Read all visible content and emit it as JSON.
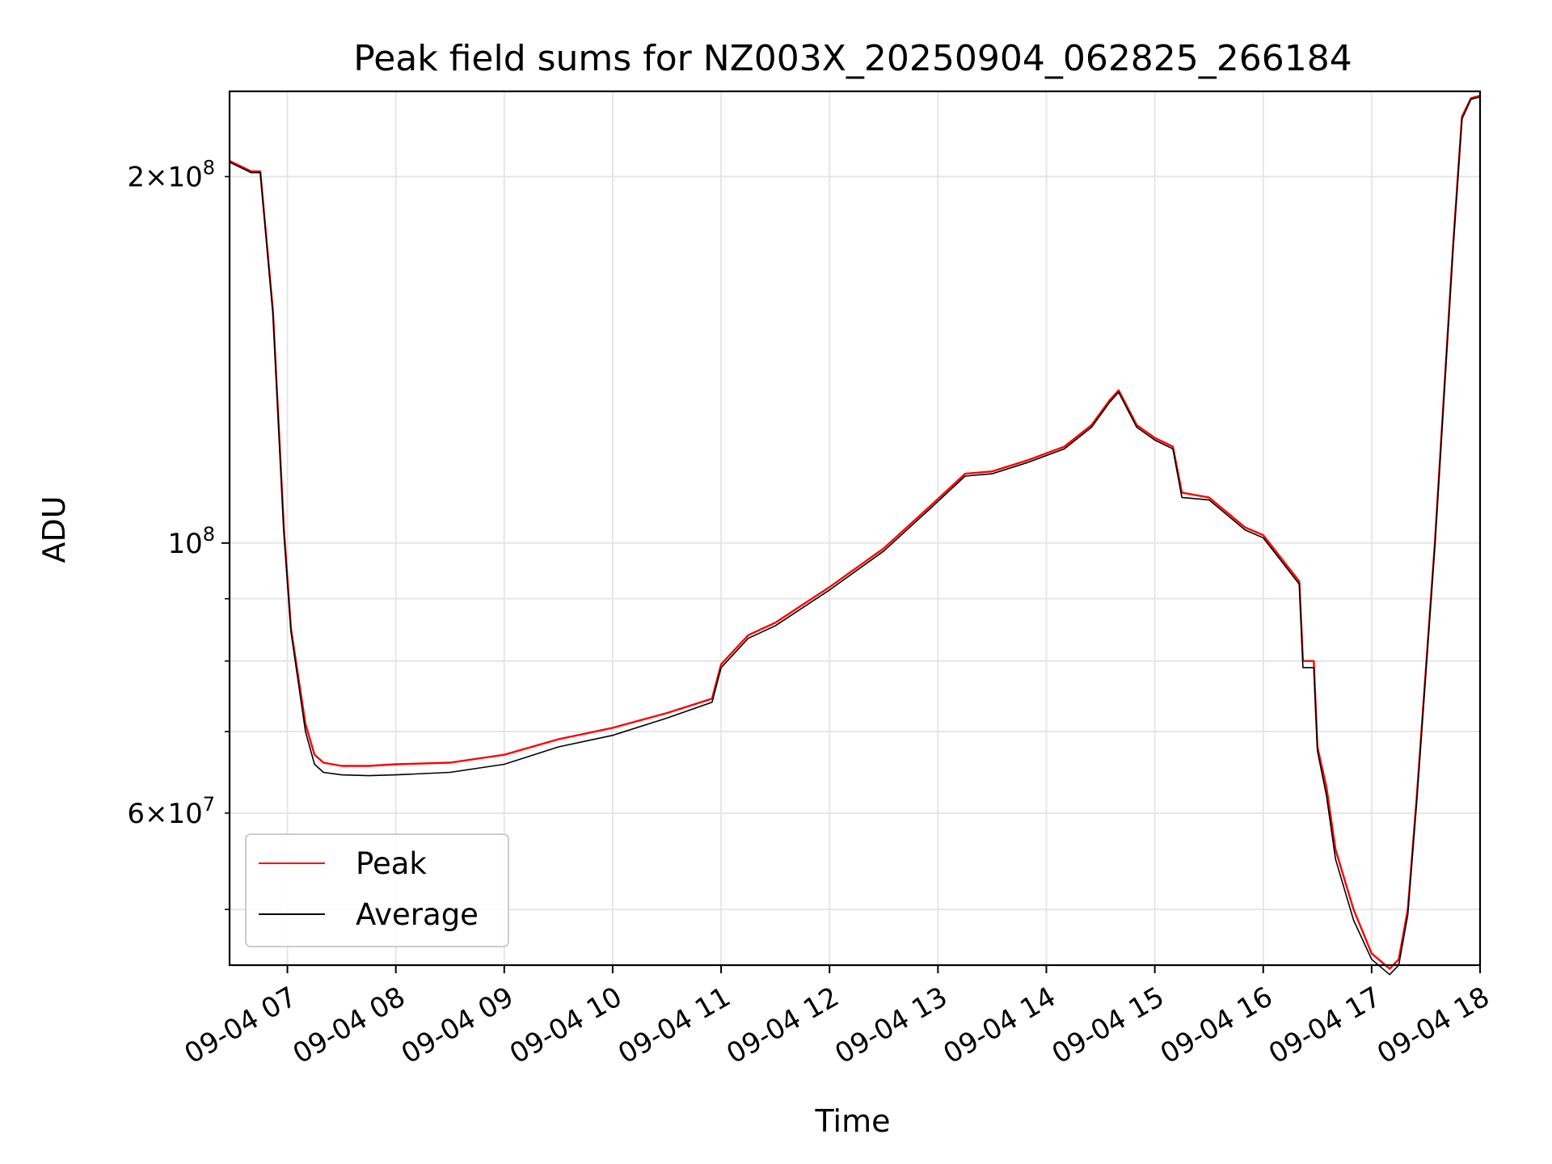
{
  "chart_data": {
    "type": "line",
    "title": "Peak field sums for NZ003X_20250904_062825_266184",
    "xlabel": "Time",
    "ylabel": "ADU",
    "x_axis_type": "datetime",
    "xlim": [
      "2025-09-04T06:28",
      "2025-09-04T18:00"
    ],
    "ylim": [
      45000000,
      235000000
    ],
    "y_scale": "log",
    "grid": true,
    "legend_position": "lower-left",
    "x_ticks": [
      "09-04 07",
      "09-04 08",
      "09-04 09",
      "09-04 10",
      "09-04 11",
      "09-04 12",
      "09-04 13",
      "09-04 14",
      "09-04 15",
      "09-04 16",
      "09-04 17",
      "09-04 18"
    ],
    "y_major_ticks": [
      {
        "value": 100000000,
        "mantissa": "",
        "exponent": "8"
      }
    ],
    "y_labeled_minor_ticks": [
      {
        "value": 60000000,
        "mantissa": "6",
        "exponent": "7"
      },
      {
        "value": 200000000,
        "mantissa": "2",
        "exponent": "8"
      }
    ],
    "y_minor_ticks": [
      50000000,
      60000000,
      70000000,
      80000000,
      90000000,
      200000000
    ],
    "series": [
      {
        "name": "Peak",
        "color": "#ff0000",
        "x": [
          "2025-09-04T06:28",
          "2025-09-04T06:40",
          "2025-09-04T06:45",
          "2025-09-04T06:52",
          "2025-09-04T06:58",
          "2025-09-04T07:02",
          "2025-09-04T07:10",
          "2025-09-04T07:15",
          "2025-09-04T07:20",
          "2025-09-04T07:30",
          "2025-09-04T07:45",
          "2025-09-04T08:00",
          "2025-09-04T08:30",
          "2025-09-04T09:00",
          "2025-09-04T09:30",
          "2025-09-04T10:00",
          "2025-09-04T10:30",
          "2025-09-04T10:55",
          "2025-09-04T11:00",
          "2025-09-04T11:15",
          "2025-09-04T11:30",
          "2025-09-04T12:00",
          "2025-09-04T12:30",
          "2025-09-04T12:55",
          "2025-09-04T13:15",
          "2025-09-04T13:30",
          "2025-09-04T13:50",
          "2025-09-04T14:10",
          "2025-09-04T14:25",
          "2025-09-04T14:35",
          "2025-09-04T14:40",
          "2025-09-04T14:50",
          "2025-09-04T15:00",
          "2025-09-04T15:10",
          "2025-09-04T15:15",
          "2025-09-04T15:30",
          "2025-09-04T15:50",
          "2025-09-04T16:00",
          "2025-09-04T16:20",
          "2025-09-04T16:22",
          "2025-09-04T16:28",
          "2025-09-04T16:30",
          "2025-09-04T16:35",
          "2025-09-04T16:40",
          "2025-09-04T16:50",
          "2025-09-04T17:00",
          "2025-09-04T17:10",
          "2025-09-04T17:15",
          "2025-09-04T17:20",
          "2025-09-04T17:25",
          "2025-09-04T17:35",
          "2025-09-04T17:45",
          "2025-09-04T17:50",
          "2025-09-04T17:55",
          "2025-09-04T18:00"
        ],
        "values": [
          206000000,
          202000000,
          202000000,
          155000000,
          103000000,
          85000000,
          71000000,
          67000000,
          66000000,
          65600000,
          65600000,
          65800000,
          66000000,
          67000000,
          69000000,
          70500000,
          72500000,
          74500000,
          79500000,
          84000000,
          86000000,
          92000000,
          99000000,
          107000000,
          114000000,
          114500000,
          117000000,
          120000000,
          125000000,
          131000000,
          133500000,
          125000000,
          122000000,
          120000000,
          110000000,
          109000000,
          103000000,
          101500000,
          93000000,
          80000000,
          80000000,
          68000000,
          63000000,
          56000000,
          50000000,
          46000000,
          44700000,
          45500000,
          50000000,
          62000000,
          100000000,
          175000000,
          224000000,
          232000000,
          233000000
        ]
      },
      {
        "name": "Average",
        "color": "#000000",
        "x": [
          "2025-09-04T06:28",
          "2025-09-04T06:40",
          "2025-09-04T06:45",
          "2025-09-04T06:52",
          "2025-09-04T06:58",
          "2025-09-04T07:02",
          "2025-09-04T07:10",
          "2025-09-04T07:15",
          "2025-09-04T07:20",
          "2025-09-04T07:30",
          "2025-09-04T07:45",
          "2025-09-04T08:00",
          "2025-09-04T08:30",
          "2025-09-04T09:00",
          "2025-09-04T09:30",
          "2025-09-04T10:00",
          "2025-09-04T10:30",
          "2025-09-04T10:55",
          "2025-09-04T11:00",
          "2025-09-04T11:15",
          "2025-09-04T11:30",
          "2025-09-04T12:00",
          "2025-09-04T12:30",
          "2025-09-04T12:55",
          "2025-09-04T13:15",
          "2025-09-04T13:30",
          "2025-09-04T13:50",
          "2025-09-04T14:10",
          "2025-09-04T14:25",
          "2025-09-04T14:35",
          "2025-09-04T14:40",
          "2025-09-04T14:50",
          "2025-09-04T15:00",
          "2025-09-04T15:10",
          "2025-09-04T15:15",
          "2025-09-04T15:30",
          "2025-09-04T15:50",
          "2025-09-04T16:00",
          "2025-09-04T16:20",
          "2025-09-04T16:22",
          "2025-09-04T16:28",
          "2025-09-04T16:30",
          "2025-09-04T16:35",
          "2025-09-04T16:40",
          "2025-09-04T16:50",
          "2025-09-04T17:00",
          "2025-09-04T17:10",
          "2025-09-04T17:15",
          "2025-09-04T17:20",
          "2025-09-04T17:25",
          "2025-09-04T17:35",
          "2025-09-04T17:45",
          "2025-09-04T17:50",
          "2025-09-04T17:55",
          "2025-09-04T18:00"
        ],
        "values": [
          205500000,
          201500000,
          201500000,
          154000000,
          102000000,
          84500000,
          70000000,
          65800000,
          64800000,
          64500000,
          64400000,
          64500000,
          64800000,
          65800000,
          68000000,
          69500000,
          71800000,
          74000000,
          79000000,
          83500000,
          85500000,
          91500000,
          98500000,
          106500000,
          113500000,
          114000000,
          116500000,
          119500000,
          124500000,
          130500000,
          133000000,
          124500000,
          121500000,
          119500000,
          109000000,
          108500000,
          102500000,
          101000000,
          92500000,
          79000000,
          79000000,
          67500000,
          62000000,
          55000000,
          49000000,
          45500000,
          44200000,
          45000000,
          49500000,
          61500000,
          99500000,
          174000000,
          223000000,
          231500000,
          232500000
        ]
      }
    ]
  }
}
